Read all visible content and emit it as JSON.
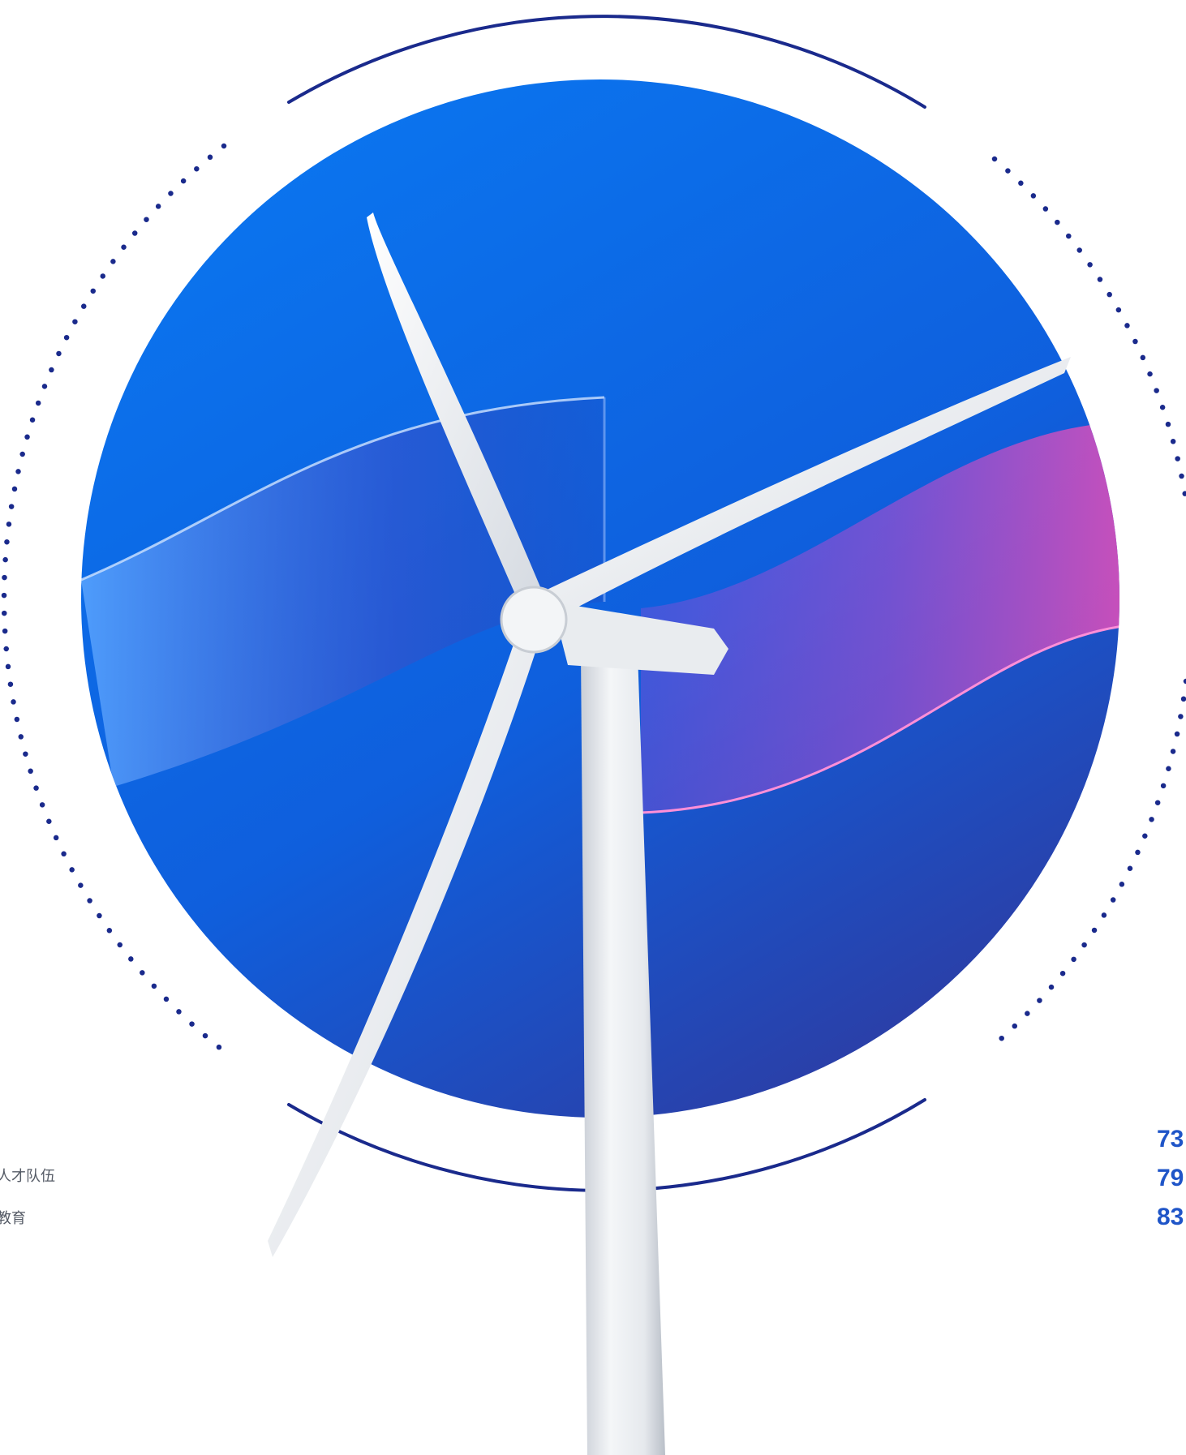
{
  "left_fragments": [
    "人才队伍",
    "教育"
  ],
  "right_fragments": [
    "73",
    "79",
    "83"
  ],
  "colors": {
    "ring": "#1a2a8c",
    "circle_top": "#0a74ee",
    "circle_bottom": "#2f3aa0",
    "wave_pink": "#e24fc4",
    "number_blue": "#1f55c8",
    "turbine": "#f1f3f5"
  }
}
